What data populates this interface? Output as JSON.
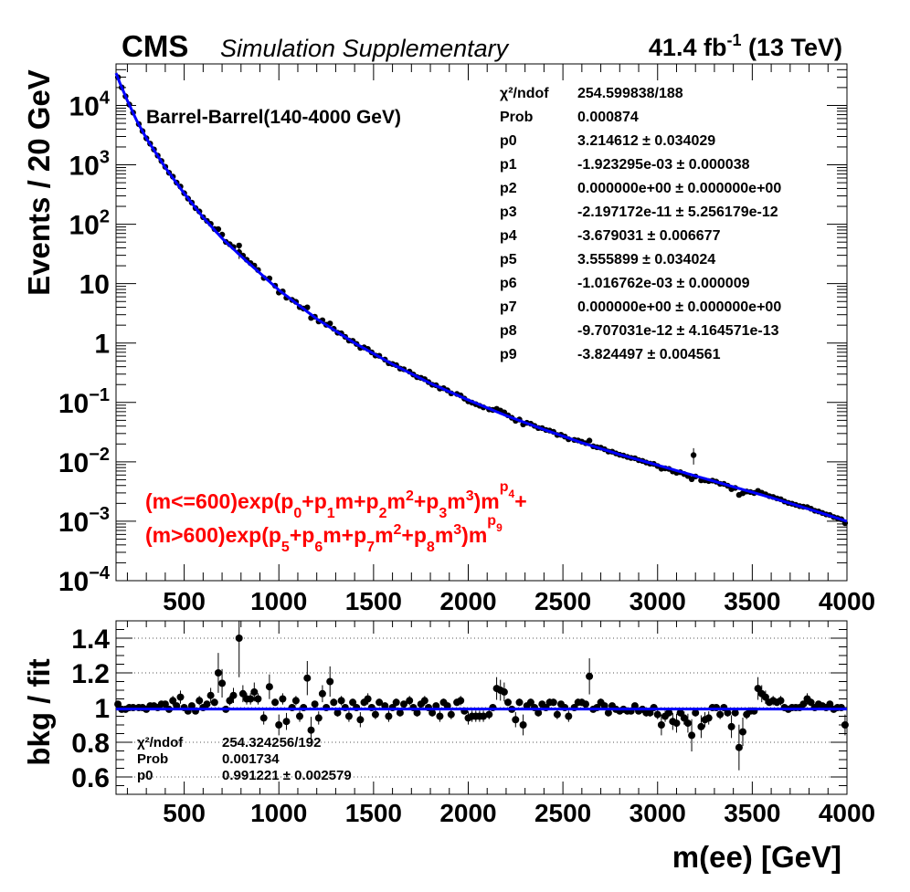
{
  "header": {
    "experiment": "CMS",
    "subtitle": "Simulation Supplementary",
    "lumi_value": "41.4 fb",
    "lumi_exp": "-1",
    "energy": " (13 TeV)"
  },
  "colors": {
    "fit": "#0000ff",
    "formula": "#ff0000",
    "points": "#000000"
  },
  "chart_data": [
    {
      "type": "scatter",
      "panel": "main",
      "category_label": "Barrel-Barrel(140-4000 GeV)",
      "ylabel": "Events / 20 GeV",
      "xlabel": "",
      "xlim": [
        140,
        4000
      ],
      "ylim": [
        0.0001,
        50000
      ],
      "log_y": true,
      "x_ticks": [
        "500",
        "1000",
        "1500",
        "2000",
        "2500",
        "3000",
        "3500",
        "4000"
      ],
      "y_ticks": [
        {
          "base": "10",
          "exp": "-4",
          "value": 0.0001
        },
        {
          "base": "10",
          "exp": "-3",
          "value": 0.001
        },
        {
          "base": "10",
          "exp": "-2",
          "value": 0.01
        },
        {
          "base": "10",
          "exp": "-1",
          "value": 0.1
        },
        {
          "base": "1",
          "exp": "",
          "value": 1
        },
        {
          "base": "10",
          "exp": "",
          "value": 10
        },
        {
          "base": "10",
          "exp": "2",
          "value": 100
        },
        {
          "base": "10",
          "exp": "3",
          "value": 1000
        },
        {
          "base": "10",
          "exp": "4",
          "value": 10000
        }
      ],
      "fit_curve": [
        [
          140,
          35000
        ],
        [
          160,
          24000
        ],
        [
          200,
          12000
        ],
        [
          250,
          5500
        ],
        [
          300,
          2800
        ],
        [
          400,
          900
        ],
        [
          500,
          330
        ],
        [
          600,
          130
        ],
        [
          700,
          58
        ],
        [
          800,
          29
        ],
        [
          1000,
          7.8
        ],
        [
          1200,
          2.55
        ],
        [
          1400,
          1.0
        ],
        [
          1600,
          0.44
        ],
        [
          1800,
          0.21
        ],
        [
          2000,
          0.11
        ],
        [
          2200,
          0.06
        ],
        [
          2400,
          0.035
        ],
        [
          2600,
          0.021
        ],
        [
          2800,
          0.0133
        ],
        [
          3000,
          0.0088
        ],
        [
          3200,
          0.0058
        ],
        [
          3400,
          0.0038
        ],
        [
          3600,
          0.0025
        ],
        [
          3800,
          0.0016
        ],
        [
          4000,
          0.001
        ]
      ],
      "outliers": [
        {
          "x": 790,
          "y": 34,
          "err": 8
        },
        {
          "x": 3190,
          "y": 0.013,
          "err": 0.004
        }
      ],
      "stats_box": [
        {
          "name": "χ²/ndof",
          "value": "254.599838/188"
        },
        {
          "name": "Prob",
          "value": "0.000874"
        },
        {
          "name": "p0",
          "value": "3.214612 ± 0.034029"
        },
        {
          "name": "p1",
          "value": "-1.923295e-03 ± 0.000038"
        },
        {
          "name": "p2",
          "value": "0.000000e+00 ± 0.000000e+00"
        },
        {
          "name": "p3",
          "value": "-2.197172e-11 ± 5.256179e-12"
        },
        {
          "name": "p4",
          "value": "-3.679031 ± 0.006677"
        },
        {
          "name": "p5",
          "value": "3.555899 ± 0.034024"
        },
        {
          "name": "p6",
          "value": "-1.016762e-03 ± 0.000009"
        },
        {
          "name": "p7",
          "value": "0.000000e+00 ± 0.000000e+00"
        },
        {
          "name": "p8",
          "value": "-9.707031e-12 ± 4.164571e-13"
        },
        {
          "name": "p9",
          "value": "-3.824497 ± 0.004561"
        }
      ],
      "formula_line1": "(m<=600)exp(p_0+p_1m+p_2m²+p_3m³)m^p_4+",
      "formula_line2": "(m>600)exp(p_5+p_6m+p_7m²+p_8m³)m^p_9"
    },
    {
      "type": "scatter",
      "panel": "ratio",
      "ylabel": "bkg / fit",
      "xlabel": "m(ee) [GeV]",
      "xlim": [
        140,
        4000
      ],
      "ylim": [
        0.5,
        1.5
      ],
      "x_ticks": [
        "500",
        "1000",
        "1500",
        "2000",
        "2500",
        "3000",
        "3500",
        "4000"
      ],
      "y_ticks": [
        "0.6",
        "0.8",
        "1",
        "1.2",
        "1.4"
      ],
      "fit_line": 0.991221,
      "points": [
        [
          150,
          1.02
        ],
        [
          170,
          0.99
        ],
        [
          190,
          0.99
        ],
        [
          210,
          1.0
        ],
        [
          230,
          1.0
        ],
        [
          260,
          1.0
        ],
        [
          280,
          1.0
        ],
        [
          300,
          0.99
        ],
        [
          320,
          1.01
        ],
        [
          340,
          1.01
        ],
        [
          360,
          1.0
        ],
        [
          380,
          1.02
        ],
        [
          400,
          1.02
        ],
        [
          420,
          0.99
        ],
        [
          440,
          1.04
        ],
        [
          460,
          1.01
        ],
        [
          480,
          1.06
        ],
        [
          500,
          1.0
        ],
        [
          520,
          0.98
        ],
        [
          540,
          1.01
        ],
        [
          560,
          0.98
        ],
        [
          580,
          1.04
        ],
        [
          600,
          1.0
        ],
        [
          620,
          1.02
        ],
        [
          640,
          1.07
        ],
        [
          660,
          1.03
        ],
        [
          680,
          1.2
        ],
        [
          700,
          1.14
        ],
        [
          720,
          0.99
        ],
        [
          740,
          1.04
        ],
        [
          760,
          1.07
        ],
        [
          790,
          1.4
        ],
        [
          810,
          1.08
        ],
        [
          830,
          1.05
        ],
        [
          850,
          1.05
        ],
        [
          870,
          1.09
        ],
        [
          890,
          1.05
        ],
        [
          920,
          0.94
        ],
        [
          950,
          1.12
        ],
        [
          980,
          1.03
        ],
        [
          1000,
          0.9
        ],
        [
          1020,
          1.05
        ],
        [
          1040,
          0.92
        ],
        [
          1070,
          1.0
        ],
        [
          1090,
          1.04
        ],
        [
          1110,
          0.95
        ],
        [
          1130,
          1.0
        ],
        [
          1150,
          1.17
        ],
        [
          1170,
          0.87
        ],
        [
          1190,
          1.02
        ],
        [
          1210,
          0.94
        ],
        [
          1230,
          1.08
        ],
        [
          1250,
          1.0
        ],
        [
          1270,
          1.15
        ],
        [
          1290,
          1.03
        ],
        [
          1310,
          0.97
        ],
        [
          1330,
          1.04
        ],
        [
          1350,
          1.0
        ],
        [
          1370,
          0.95
        ],
        [
          1390,
          1.03
        ],
        [
          1410,
          1.0
        ],
        [
          1430,
          0.93
        ],
        [
          1450,
          1.03
        ],
        [
          1470,
          1.05
        ],
        [
          1490,
          1.0
        ],
        [
          1510,
          0.96
        ],
        [
          1530,
          1.03
        ],
        [
          1560,
          1.01
        ],
        [
          1580,
          0.95
        ],
        [
          1600,
          1.0
        ],
        [
          1620,
          1.03
        ],
        [
          1640,
          0.97
        ],
        [
          1660,
          1.02
        ],
        [
          1690,
          1.04
        ],
        [
          1710,
          1.0
        ],
        [
          1730,
          0.97
        ],
        [
          1750,
          1.02
        ],
        [
          1770,
          1.04
        ],
        [
          1790,
          1.0
        ],
        [
          1810,
          0.97
        ],
        [
          1830,
          1.01
        ],
        [
          1850,
          0.95
        ],
        [
          1870,
          1.03
        ],
        [
          1890,
          1.01
        ],
        [
          1910,
          0.96
        ],
        [
          1940,
          1.03
        ],
        [
          1960,
          1.04
        ],
        [
          1980,
          0.98
        ],
        [
          2000,
          0.94
        ],
        [
          2020,
          0.95
        ],
        [
          2040,
          0.95
        ],
        [
          2060,
          0.95
        ],
        [
          2080,
          0.95
        ],
        [
          2110,
          0.96
        ],
        [
          2130,
          1.0
        ],
        [
          2150,
          1.11
        ],
        [
          2170,
          1.1
        ],
        [
          2190,
          1.09
        ],
        [
          2210,
          1.03
        ],
        [
          2230,
          0.99
        ],
        [
          2250,
          0.93
        ],
        [
          2270,
          1.03
        ],
        [
          2290,
          0.9
        ],
        [
          2310,
          1.01
        ],
        [
          2330,
          1.03
        ],
        [
          2350,
          1.0
        ],
        [
          2370,
          0.97
        ],
        [
          2390,
          1.02
        ],
        [
          2410,
          1.0
        ],
        [
          2430,
          1.03
        ],
        [
          2450,
          1.03
        ],
        [
          2470,
          0.96
        ],
        [
          2490,
          1.02
        ],
        [
          2510,
          1.0
        ],
        [
          2530,
          0.95
        ],
        [
          2560,
          1.0
        ],
        [
          2580,
          1.03
        ],
        [
          2600,
          1.03
        ],
        [
          2620,
          1.02
        ],
        [
          2640,
          1.18
        ],
        [
          2660,
          0.99
        ],
        [
          2680,
          1.0
        ],
        [
          2700,
          1.03
        ],
        [
          2720,
          1.01
        ],
        [
          2740,
          0.97
        ],
        [
          2760,
          1.01
        ],
        [
          2780,
          0.99
        ],
        [
          2800,
          0.98
        ],
        [
          2820,
          0.99
        ],
        [
          2840,
          0.98
        ],
        [
          2860,
          0.98
        ],
        [
          2880,
          1.01
        ],
        [
          2900,
          0.98
        ],
        [
          2920,
          0.99
        ],
        [
          2940,
          0.97
        ],
        [
          2960,
          0.97
        ],
        [
          2980,
          1.0
        ],
        [
          3000,
          0.96
        ],
        [
          3020,
          0.9
        ],
        [
          3040,
          0.95
        ],
        [
          3060,
          0.97
        ],
        [
          3080,
          0.92
        ],
        [
          3100,
          0.91
        ],
        [
          3120,
          0.97
        ],
        [
          3140,
          0.94
        ],
        [
          3160,
          0.91
        ],
        [
          3180,
          0.84
        ],
        [
          3200,
          0.97
        ],
        [
          3230,
          0.89
        ],
        [
          3250,
          0.93
        ],
        [
          3270,
          0.94
        ],
        [
          3290,
          1.0
        ],
        [
          3310,
          1.0
        ],
        [
          3330,
          0.96
        ],
        [
          3350,
          1.0
        ],
        [
          3370,
          0.97
        ],
        [
          3390,
          0.89
        ],
        [
          3410,
          0.97
        ],
        [
          3430,
          0.77
        ],
        [
          3450,
          0.86
        ],
        [
          3470,
          0.96
        ],
        [
          3490,
          0.98
        ],
        [
          3510,
          0.98
        ],
        [
          3530,
          1.11
        ],
        [
          3550,
          1.08
        ],
        [
          3570,
          1.06
        ],
        [
          3590,
          1.03
        ],
        [
          3610,
          1.04
        ],
        [
          3630,
          1.03
        ],
        [
          3650,
          1.04
        ],
        [
          3670,
          1.0
        ],
        [
          3690,
          0.99
        ],
        [
          3710,
          1.0
        ],
        [
          3730,
          1.0
        ],
        [
          3750,
          1.0
        ],
        [
          3770,
          1.02
        ],
        [
          3790,
          1.05
        ],
        [
          3810,
          1.03
        ],
        [
          3830,
          1.0
        ],
        [
          3850,
          1.02
        ],
        [
          3870,
          1.01
        ],
        [
          3890,
          1.0
        ],
        [
          3910,
          1.02
        ],
        [
          3930,
          0.99
        ],
        [
          3950,
          1.0
        ],
        [
          3970,
          1.0
        ],
        [
          3990,
          0.9
        ]
      ],
      "stats_box": [
        {
          "name": "χ²/ndof",
          "value": "254.324256/192"
        },
        {
          "name": "Prob",
          "value": "0.001734"
        },
        {
          "name": "p0",
          "value": "0.991221 ± 0.002579"
        }
      ]
    }
  ]
}
